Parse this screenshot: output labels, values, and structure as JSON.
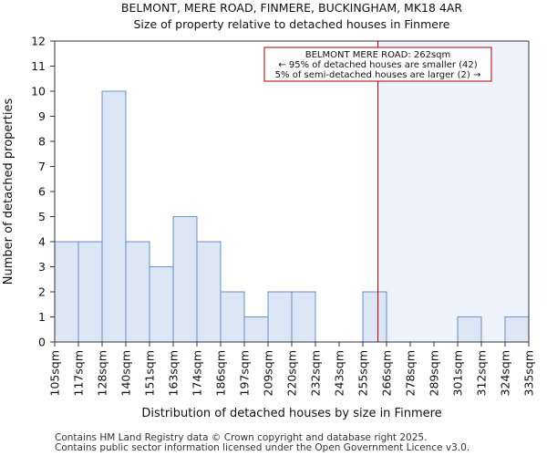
{
  "chart_data": {
    "type": "bar",
    "title": "BELMONT, MERE ROAD, FINMERE, BUCKINGHAM, MK18 4AR",
    "subtitle": "Size of property relative to detached houses in Finmere",
    "xlabel": "Distribution of detached houses by size in Finmere",
    "ylabel": "Number of detached properties",
    "ylim": [
      0,
      12
    ],
    "yticks": [
      0,
      1,
      2,
      3,
      4,
      5,
      6,
      7,
      8,
      9,
      10,
      11,
      12
    ],
    "bin_edges": [
      "105sqm",
      "117sqm",
      "128sqm",
      "140sqm",
      "151sqm",
      "163sqm",
      "174sqm",
      "186sqm",
      "197sqm",
      "209sqm",
      "220sqm",
      "232sqm",
      "243sqm",
      "255sqm",
      "266sqm",
      "278sqm",
      "289sqm",
      "301sqm",
      "312sqm",
      "324sqm",
      "335sqm"
    ],
    "values": [
      4,
      4,
      10,
      4,
      3,
      5,
      4,
      2,
      1,
      2,
      2,
      0,
      0,
      2,
      0,
      0,
      0,
      1,
      0,
      1
    ],
    "marker_value_sqm": 262,
    "annotation": {
      "line1": "BELMONT MERE ROAD: 262sqm",
      "line2": "← 95% of detached houses are smaller (42)",
      "line3": "5% of semi-detached houses are larger (2) →"
    },
    "colors": {
      "bar_fill": "#dce6f5",
      "bar_stroke": "#6a8fc9",
      "highlight_region": "#eef2fb",
      "marker_line": "#aa0000",
      "annotation_border": "#aa0000"
    }
  },
  "footer": {
    "line1": "Contains HM Land Registry data © Crown copyright and database right 2025.",
    "line2": "Contains public sector information licensed under the Open Government Licence v3.0."
  }
}
